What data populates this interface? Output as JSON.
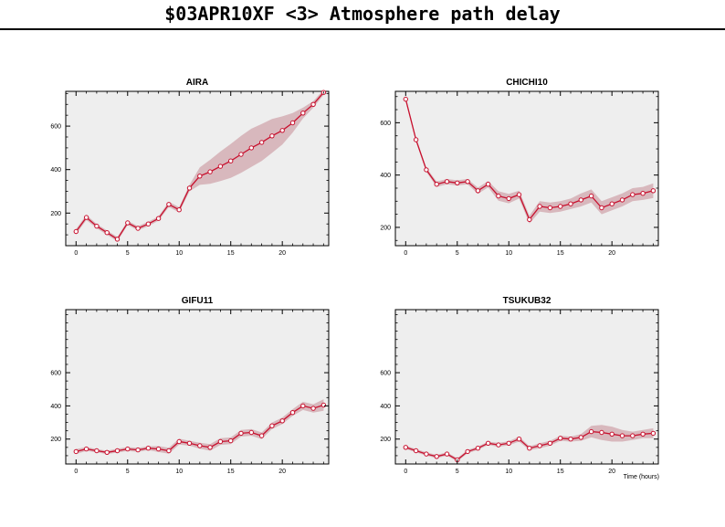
{
  "page": {
    "title": "$03APR10XF <3>  Atmosphere path delay",
    "xlabel": "Time (hours)"
  },
  "colors": {
    "background": "#ffffff",
    "plot_bg": "#eeeeee",
    "line": "#c8102e",
    "band": "#d8b8bd",
    "marker_fill": "#ffffff"
  },
  "chart_data": [
    {
      "type": "line",
      "title": "AIRA",
      "xlim": [
        -1,
        24.5
      ],
      "ylim": [
        50,
        760
      ],
      "xticks": [
        0,
        5,
        10,
        15,
        20
      ],
      "yticks": [
        200,
        400,
        600
      ],
      "x": [
        0,
        1,
        2,
        3,
        4,
        5,
        6,
        7,
        8,
        9,
        10,
        11,
        12,
        13,
        14,
        15,
        16,
        17,
        18,
        19,
        20,
        21,
        22,
        23,
        24
      ],
      "y": [
        115,
        180,
        140,
        110,
        80,
        155,
        130,
        150,
        175,
        240,
        215,
        315,
        370,
        390,
        415,
        440,
        470,
        500,
        525,
        555,
        580,
        615,
        660,
        700,
        755
      ],
      "band": [
        12,
        12,
        10,
        10,
        10,
        10,
        10,
        10,
        10,
        12,
        12,
        15,
        40,
        55,
        68,
        78,
        85,
        88,
        85,
        78,
        65,
        45,
        25,
        15,
        12
      ]
    },
    {
      "type": "line",
      "title": "CHICHI10",
      "xlim": [
        -1,
        24.5
      ],
      "ylim": [
        130,
        720
      ],
      "xticks": [
        0,
        5,
        10,
        15,
        20
      ],
      "yticks": [
        200,
        400,
        600
      ],
      "x": [
        0,
        1,
        2,
        3,
        4,
        5,
        6,
        7,
        8,
        9,
        10,
        11,
        12,
        13,
        14,
        15,
        16,
        17,
        18,
        19,
        20,
        21,
        22,
        23,
        24
      ],
      "y": [
        690,
        535,
        420,
        365,
        375,
        370,
        375,
        340,
        365,
        320,
        310,
        325,
        230,
        280,
        275,
        280,
        290,
        305,
        320,
        275,
        290,
        305,
        325,
        330,
        340
      ],
      "band": [
        8,
        8,
        8,
        10,
        10,
        10,
        10,
        12,
        12,
        18,
        18,
        15,
        15,
        20,
        20,
        20,
        20,
        25,
        25,
        25,
        25,
        25,
        25,
        25,
        28
      ]
    },
    {
      "type": "line",
      "title": "GIFU11",
      "xlim": [
        -1,
        24.5
      ],
      "ylim": [
        50,
        980
      ],
      "xticks": [
        0,
        5,
        10,
        15,
        20
      ],
      "yticks": [
        200,
        400,
        600
      ],
      "x": [
        0,
        1,
        2,
        3,
        4,
        5,
        6,
        7,
        8,
        9,
        10,
        11,
        12,
        13,
        14,
        15,
        16,
        17,
        18,
        19,
        20,
        21,
        22,
        23,
        24
      ],
      "y": [
        125,
        140,
        130,
        120,
        130,
        140,
        135,
        145,
        140,
        130,
        185,
        175,
        160,
        150,
        185,
        190,
        235,
        240,
        220,
        280,
        310,
        360,
        400,
        385,
        405
      ],
      "band": [
        15,
        12,
        10,
        10,
        12,
        12,
        12,
        12,
        18,
        18,
        18,
        15,
        18,
        20,
        20,
        20,
        20,
        20,
        20,
        20,
        20,
        20,
        25,
        25,
        35
      ]
    },
    {
      "type": "line",
      "title": "TSUKUB32",
      "xlim": [
        -1,
        24.5
      ],
      "ylim": [
        50,
        980
      ],
      "xticks": [
        0,
        5,
        10,
        15,
        20
      ],
      "yticks": [
        200,
        400,
        600
      ],
      "x": [
        0,
        1,
        2,
        3,
        4,
        5,
        6,
        7,
        8,
        9,
        10,
        11,
        12,
        13,
        14,
        15,
        16,
        17,
        18,
        19,
        20,
        21,
        22,
        23,
        24
      ],
      "y": [
        150,
        130,
        110,
        95,
        110,
        75,
        125,
        145,
        175,
        165,
        175,
        200,
        145,
        160,
        175,
        205,
        200,
        210,
        245,
        240,
        230,
        220,
        220,
        230,
        235
      ],
      "band": [
        10,
        10,
        10,
        10,
        10,
        10,
        10,
        10,
        10,
        12,
        12,
        15,
        12,
        15,
        15,
        15,
        15,
        20,
        35,
        45,
        45,
        35,
        25,
        25,
        30
      ]
    }
  ]
}
